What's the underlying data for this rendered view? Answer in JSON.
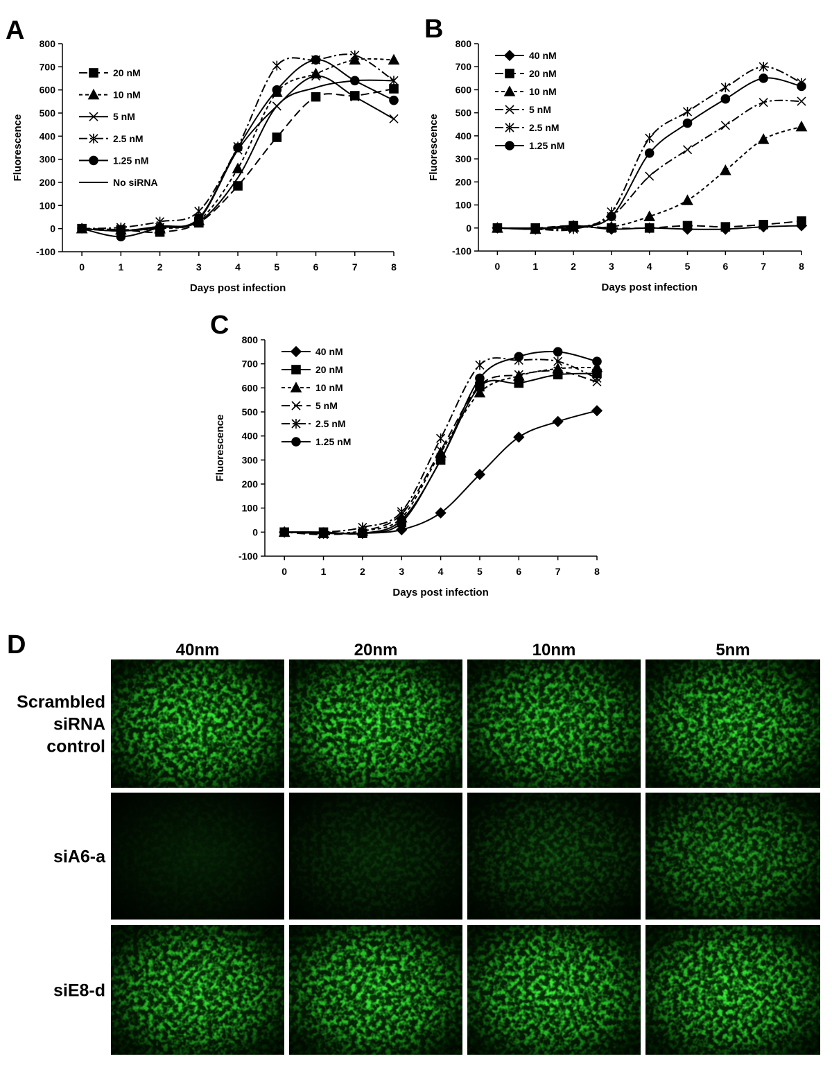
{
  "chart_data": [
    {
      "type": "line",
      "label": "A",
      "x_label": "Days post infection",
      "y_label": "Fluorescence",
      "x": [
        0,
        1,
        2,
        3,
        4,
        5,
        6,
        7,
        8
      ],
      "xlim": [
        -0.5,
        8
      ],
      "xticks": [
        0,
        1,
        2,
        3,
        4,
        5,
        6,
        7,
        8
      ],
      "ylim": [
        -100,
        800
      ],
      "yticks": [
        -100,
        0,
        100,
        200,
        300,
        400,
        500,
        600,
        700,
        800
      ],
      "legend": "upper left",
      "series": [
        {
          "name": "20 nM",
          "color": "#000000",
          "marker": "square",
          "linestyle": "long-dash",
          "values": [
            0,
            -5,
            -15,
            25,
            185,
            395,
            570,
            575,
            605
          ]
        },
        {
          "name": "10 nM",
          "color": "#000000",
          "marker": "triangle",
          "linestyle": "short-dash",
          "values": [
            0,
            -5,
            0,
            35,
            260,
            590,
            670,
            730,
            730
          ]
        },
        {
          "name": "5 nM",
          "color": "#000000",
          "marker": "x",
          "linestyle": "solid",
          "values": [
            0,
            -10,
            5,
            40,
            340,
            530,
            660,
            570,
            475
          ]
        },
        {
          "name": "2.5 nM",
          "color": "#000000",
          "marker": "star",
          "linestyle": "dash-dot",
          "values": [
            0,
            5,
            30,
            75,
            355,
            705,
            730,
            750,
            640
          ]
        },
        {
          "name": "1.25 nM",
          "color": "#000000",
          "marker": "circle",
          "linestyle": "solid",
          "values": [
            0,
            -35,
            5,
            45,
            350,
            600,
            730,
            640,
            555
          ]
        },
        {
          "name": "No siRNA",
          "color": "#000000",
          "marker": "none",
          "linestyle": "solid",
          "values": [
            0,
            -10,
            10,
            30,
            220,
            530,
            610,
            640,
            640
          ]
        }
      ]
    },
    {
      "type": "line",
      "label": "B",
      "x_label": "Days post infection",
      "y_label": "Fluorescence",
      "x": [
        0,
        1,
        2,
        3,
        4,
        5,
        6,
        7,
        8
      ],
      "xlim": [
        -0.5,
        8
      ],
      "xticks": [
        0,
        1,
        2,
        3,
        4,
        5,
        6,
        7,
        8
      ],
      "ylim": [
        -100,
        800
      ],
      "yticks": [
        -100,
        0,
        100,
        200,
        300,
        400,
        500,
        600,
        700,
        800
      ],
      "legend": "upper left",
      "series": [
        {
          "name": "40 nM",
          "color": "#000000",
          "marker": "diamond",
          "linestyle": "solid",
          "values": [
            0,
            -5,
            10,
            -5,
            0,
            -5,
            -5,
            5,
            10
          ]
        },
        {
          "name": "20 nM",
          "color": "#000000",
          "marker": "square",
          "linestyle": "long-dash",
          "values": [
            0,
            0,
            10,
            0,
            0,
            10,
            5,
            15,
            30
          ]
        },
        {
          "name": "10 nM",
          "color": "#000000",
          "marker": "triangle",
          "linestyle": "short-dash",
          "values": [
            0,
            -5,
            5,
            5,
            50,
            120,
            250,
            385,
            440
          ]
        },
        {
          "name": "5 nM",
          "color": "#000000",
          "marker": "x",
          "linestyle": "dash-dot",
          "values": [
            0,
            -5,
            0,
            50,
            225,
            340,
            445,
            545,
            550
          ]
        },
        {
          "name": "2.5 nM",
          "color": "#000000",
          "marker": "star",
          "linestyle": "dash-dot",
          "values": [
            0,
            -5,
            -5,
            70,
            390,
            505,
            610,
            700,
            630
          ]
        },
        {
          "name": "1.25 nM",
          "color": "#000000",
          "marker": "circle",
          "linestyle": "solid",
          "values": [
            0,
            0,
            5,
            50,
            325,
            455,
            560,
            650,
            615
          ]
        }
      ]
    },
    {
      "type": "line",
      "label": "C",
      "x_label": "Days post infection",
      "y_label": "Fluorescence",
      "x": [
        0,
        1,
        2,
        3,
        4,
        5,
        6,
        7,
        8
      ],
      "xlim": [
        -0.5,
        8
      ],
      "xticks": [
        0,
        1,
        2,
        3,
        4,
        5,
        6,
        7,
        8
      ],
      "ylim": [
        -100,
        800
      ],
      "yticks": [
        -100,
        0,
        100,
        200,
        300,
        400,
        500,
        600,
        700,
        800
      ],
      "legend": "upper left",
      "series": [
        {
          "name": "40 nM",
          "color": "#000000",
          "marker": "diamond",
          "linestyle": "solid",
          "values": [
            0,
            -5,
            -5,
            10,
            80,
            240,
            395,
            460,
            505
          ]
        },
        {
          "name": "20 nM",
          "color": "#000000",
          "marker": "square",
          "linestyle": "solid",
          "values": [
            0,
            0,
            -5,
            40,
            300,
            605,
            620,
            655,
            660
          ]
        },
        {
          "name": "10 nM",
          "color": "#000000",
          "marker": "triangle",
          "linestyle": "short-dash",
          "values": [
            0,
            -5,
            5,
            60,
            330,
            580,
            650,
            680,
            685
          ]
        },
        {
          "name": "5 nM",
          "color": "#000000",
          "marker": "x",
          "linestyle": "long-dash",
          "values": [
            0,
            -10,
            5,
            75,
            340,
            610,
            655,
            670,
            625
          ]
        },
        {
          "name": "2.5 nM",
          "color": "#000000",
          "marker": "star",
          "linestyle": "dash-dot",
          "values": [
            0,
            0,
            20,
            85,
            390,
            695,
            715,
            710,
            640
          ]
        },
        {
          "name": "1.25 nM",
          "color": "#000000",
          "marker": "circle",
          "linestyle": "solid",
          "values": [
            0,
            0,
            -5,
            50,
            300,
            640,
            730,
            750,
            710
          ]
        }
      ]
    }
  ],
  "panel_d": {
    "label": "D",
    "columns": [
      "40nm",
      "20nm",
      "10nm",
      "5nm"
    ],
    "rows": [
      [
        "Scrambled",
        "siRNA",
        "control"
      ],
      [
        "siA6-a"
      ],
      [
        "siE8-d"
      ]
    ]
  }
}
